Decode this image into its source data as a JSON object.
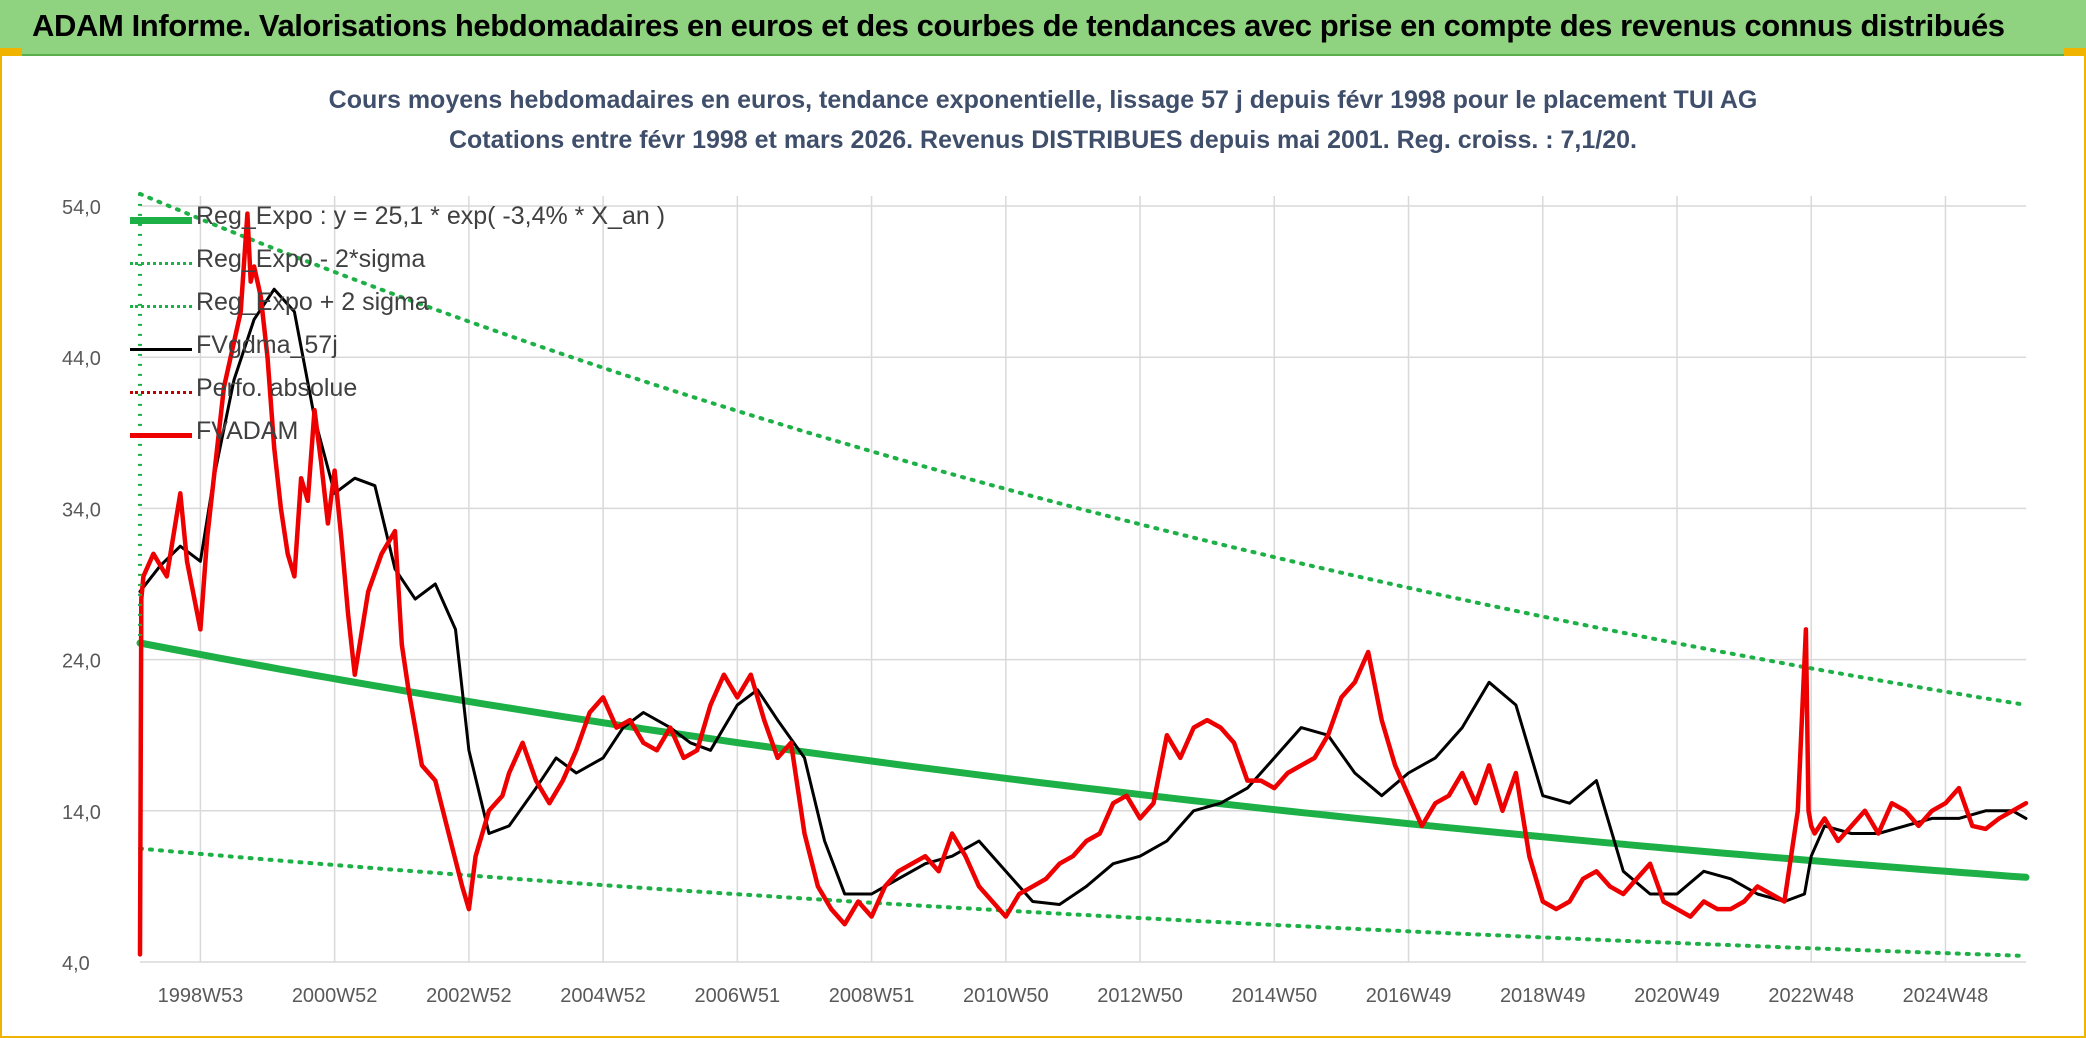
{
  "header": {
    "title": "ADAM Informe. Valorisations hebdomadaires en euros et des courbes de tendances avec prise en compte des revenus connus distribués"
  },
  "chart_data": {
    "type": "line",
    "title": "Cours moyens hebdomadaires en euros, tendance exponentielle, lissage 57 j depuis févr 1998 pour le placement TUI AG",
    "subtitle": "Cotations entre févr 1998 et mars 2026. Revenus DISTRIBUES depuis mai 2001. Reg. croiss. : 7,1/20.",
    "xlabel": "",
    "ylabel": "",
    "ylim": [
      4,
      54
    ],
    "x_range": [
      1998.1,
      2026.2
    ],
    "yticks": [
      "4,0",
      "14,0",
      "24,0",
      "34,0",
      "44,0",
      "54,0"
    ],
    "xticks": [
      {
        "label": "1998W53",
        "x": 1999.0
      },
      {
        "label": "2000W52",
        "x": 2001.0
      },
      {
        "label": "2002W52",
        "x": 2003.0
      },
      {
        "label": "2004W52",
        "x": 2005.0
      },
      {
        "label": "2006W51",
        "x": 2007.0
      },
      {
        "label": "2008W51",
        "x": 2009.0
      },
      {
        "label": "2010W50",
        "x": 2011.0
      },
      {
        "label": "2012W50",
        "x": 2013.0
      },
      {
        "label": "2014W50",
        "x": 2015.0
      },
      {
        "label": "2016W49",
        "x": 2017.0
      },
      {
        "label": "2018W49",
        "x": 2019.0
      },
      {
        "label": "2020W49",
        "x": 2021.0
      },
      {
        "label": "2022W48",
        "x": 2023.0
      },
      {
        "label": "2024W48",
        "x": 2025.0
      }
    ],
    "grid": true,
    "legend_position": "top-left",
    "series": [
      {
        "name": "Reg_Expo : y = 25,1 * exp( -3,4% *  X_an )",
        "color": "#1db046",
        "style": "solid-thick",
        "x": [
          1998.1,
          2026.2
        ],
        "y": [
          25.1,
          9.6
        ]
      },
      {
        "name": "Reg_Expo - 2*sigma",
        "color": "#1db046",
        "style": "dotted",
        "x": [
          1998.1,
          2026.2
        ],
        "y": [
          11.5,
          4.4
        ]
      },
      {
        "name": "Reg_Expo + 2 sigma",
        "color": "#1db046",
        "style": "dotted",
        "x": [
          1998.1,
          2026.2
        ],
        "y": [
          54.8,
          21.0
        ]
      },
      {
        "name": "FVgdma_57j",
        "color": "#000000",
        "style": "solid",
        "x": [
          1998.1,
          1998.4,
          1998.7,
          1999.0,
          1999.2,
          1999.5,
          1999.8,
          2000.1,
          2000.4,
          2000.7,
          2001.0,
          2001.3,
          2001.6,
          2001.9,
          2002.2,
          2002.5,
          2002.8,
          2003.0,
          2003.3,
          2003.6,
          2004.0,
          2004.3,
          2004.6,
          2005.0,
          2005.3,
          2005.6,
          2006.0,
          2006.3,
          2006.6,
          2007.0,
          2007.3,
          2007.6,
          2008.0,
          2008.3,
          2008.6,
          2009.0,
          2009.4,
          2009.8,
          2010.2,
          2010.6,
          2011.0,
          2011.4,
          2011.8,
          2012.2,
          2012.6,
          2013.0,
          2013.4,
          2013.8,
          2014.2,
          2014.6,
          2015.0,
          2015.4,
          2015.8,
          2016.2,
          2016.6,
          2017.0,
          2017.4,
          2017.8,
          2018.2,
          2018.6,
          2019.0,
          2019.4,
          2019.8,
          2020.2,
          2020.6,
          2021.0,
          2021.4,
          2021.8,
          2022.2,
          2022.6,
          2022.9,
          2023.0,
          2023.2,
          2023.6,
          2024.0,
          2024.4,
          2024.8,
          2025.2,
          2025.6,
          2026.0,
          2026.2
        ],
        "y": [
          28.5,
          30.2,
          31.5,
          30.5,
          36.0,
          42.5,
          46.5,
          48.5,
          47.0,
          40.0,
          35.0,
          36.0,
          35.5,
          30.0,
          28.0,
          29.0,
          26.0,
          18.0,
          12.5,
          13.0,
          15.5,
          17.5,
          16.5,
          17.5,
          19.5,
          20.5,
          19.5,
          18.5,
          18.0,
          21.0,
          22.0,
          20.0,
          17.5,
          12.0,
          8.5,
          8.5,
          9.5,
          10.5,
          11.0,
          12.0,
          10.0,
          8.0,
          7.8,
          9.0,
          10.5,
          11.0,
          12.0,
          14.0,
          14.5,
          15.5,
          17.5,
          19.5,
          19.0,
          16.5,
          15.0,
          16.5,
          17.5,
          19.5,
          22.5,
          21.0,
          15.0,
          14.5,
          16.0,
          10.0,
          8.5,
          8.5,
          10.0,
          9.5,
          8.5,
          8.0,
          8.5,
          11.0,
          13.0,
          12.5,
          12.5,
          13.0,
          13.5,
          13.5,
          14.0,
          14.0,
          13.5
        ]
      },
      {
        "name": "Perfo. absolue",
        "color": "#c00000",
        "style": "dotted",
        "x": [],
        "y": []
      },
      {
        "name": "FVADAM",
        "color": "#ee0000",
        "style": "solid-thick",
        "x": [
          1998.1,
          1998.12,
          1998.15,
          1998.3,
          1998.5,
          1998.7,
          1998.8,
          1999.0,
          1999.1,
          1999.2,
          1999.35,
          1999.5,
          1999.6,
          1999.7,
          1999.75,
          1999.8,
          1999.9,
          2000.0,
          2000.1,
          2000.2,
          2000.3,
          2000.4,
          2000.5,
          2000.6,
          2000.7,
          2000.8,
          2000.9,
          2001.0,
          2001.1,
          2001.2,
          2001.3,
          2001.5,
          2001.7,
          2001.9,
          2002.0,
          2002.1,
          2002.3,
          2002.5,
          2002.7,
          2002.9,
          2003.0,
          2003.1,
          2003.3,
          2003.5,
          2003.6,
          2003.8,
          2004.0,
          2004.2,
          2004.4,
          2004.6,
          2004.8,
          2005.0,
          2005.2,
          2005.4,
          2005.6,
          2005.8,
          2006.0,
          2006.2,
          2006.4,
          2006.6,
          2006.8,
          2007.0,
          2007.2,
          2007.4,
          2007.6,
          2007.8,
          2008.0,
          2008.2,
          2008.4,
          2008.6,
          2008.8,
          2009.0,
          2009.2,
          2009.4,
          2009.6,
          2009.8,
          2010.0,
          2010.2,
          2010.4,
          2010.6,
          2010.8,
          2011.0,
          2011.2,
          2011.4,
          2011.6,
          2011.8,
          2012.0,
          2012.2,
          2012.4,
          2012.6,
          2012.8,
          2013.0,
          2013.2,
          2013.4,
          2013.6,
          2013.8,
          2014.0,
          2014.2,
          2014.4,
          2014.6,
          2014.8,
          2015.0,
          2015.2,
          2015.4,
          2015.6,
          2015.8,
          2016.0,
          2016.2,
          2016.4,
          2016.6,
          2016.8,
          2017.0,
          2017.2,
          2017.4,
          2017.6,
          2017.8,
          2018.0,
          2018.2,
          2018.4,
          2018.6,
          2018.8,
          2019.0,
          2019.2,
          2019.4,
          2019.6,
          2019.8,
          2020.0,
          2020.2,
          2020.4,
          2020.6,
          2020.8,
          2021.0,
          2021.2,
          2021.4,
          2021.6,
          2021.8,
          2022.0,
          2022.2,
          2022.4,
          2022.6,
          2022.8,
          2022.92,
          2022.96,
          2023.0,
          2023.05,
          2023.2,
          2023.4,
          2023.6,
          2023.8,
          2024.0,
          2024.2,
          2024.4,
          2024.6,
          2024.8,
          2025.0,
          2025.2,
          2025.4,
          2025.6,
          2025.8,
          2026.0,
          2026.2
        ],
        "y": [
          4.5,
          28.0,
          29.5,
          31.0,
          29.5,
          35.0,
          30.5,
          26.0,
          32.0,
          36.0,
          42.0,
          45.0,
          47.0,
          53.5,
          49.0,
          50.0,
          48.0,
          44.0,
          38.0,
          34.0,
          31.0,
          29.5,
          36.0,
          34.5,
          40.5,
          37.0,
          33.0,
          36.5,
          32.0,
          27.0,
          23.0,
          28.5,
          31.0,
          32.5,
          25.0,
          22.0,
          17.0,
          16.0,
          12.5,
          9.0,
          7.5,
          11.0,
          14.0,
          15.0,
          16.5,
          18.5,
          16.0,
          14.5,
          16.0,
          18.0,
          20.5,
          21.5,
          19.5,
          20.0,
          18.5,
          18.0,
          19.5,
          17.5,
          18.0,
          21.0,
          23.0,
          21.5,
          23.0,
          20.0,
          17.5,
          18.5,
          12.5,
          9.0,
          7.5,
          6.5,
          8.0,
          7.0,
          9.0,
          10.0,
          10.5,
          11.0,
          10.0,
          12.5,
          11.0,
          9.0,
          8.0,
          7.0,
          8.5,
          9.0,
          9.5,
          10.5,
          11.0,
          12.0,
          12.5,
          14.5,
          15.0,
          13.5,
          14.5,
          19.0,
          17.5,
          19.5,
          20.0,
          19.5,
          18.5,
          16.0,
          16.0,
          15.5,
          16.5,
          17.0,
          17.5,
          19.0,
          21.5,
          22.5,
          24.5,
          20.0,
          17.0,
          15.0,
          13.0,
          14.5,
          15.0,
          16.5,
          14.5,
          17.0,
          14.0,
          16.5,
          11.0,
          8.0,
          7.5,
          8.0,
          9.5,
          10.0,
          9.0,
          8.5,
          9.5,
          10.5,
          8.0,
          7.5,
          7.0,
          8.0,
          7.5,
          7.5,
          8.0,
          9.0,
          8.5,
          8.0,
          14.0,
          26.0,
          14.0,
          13.0,
          12.5,
          13.5,
          12.0,
          13.0,
          14.0,
          12.5,
          14.5,
          14.0,
          13.0,
          14.0,
          14.5,
          15.5,
          13.0,
          12.8,
          13.5,
          14.0,
          14.5
        ]
      }
    ]
  }
}
